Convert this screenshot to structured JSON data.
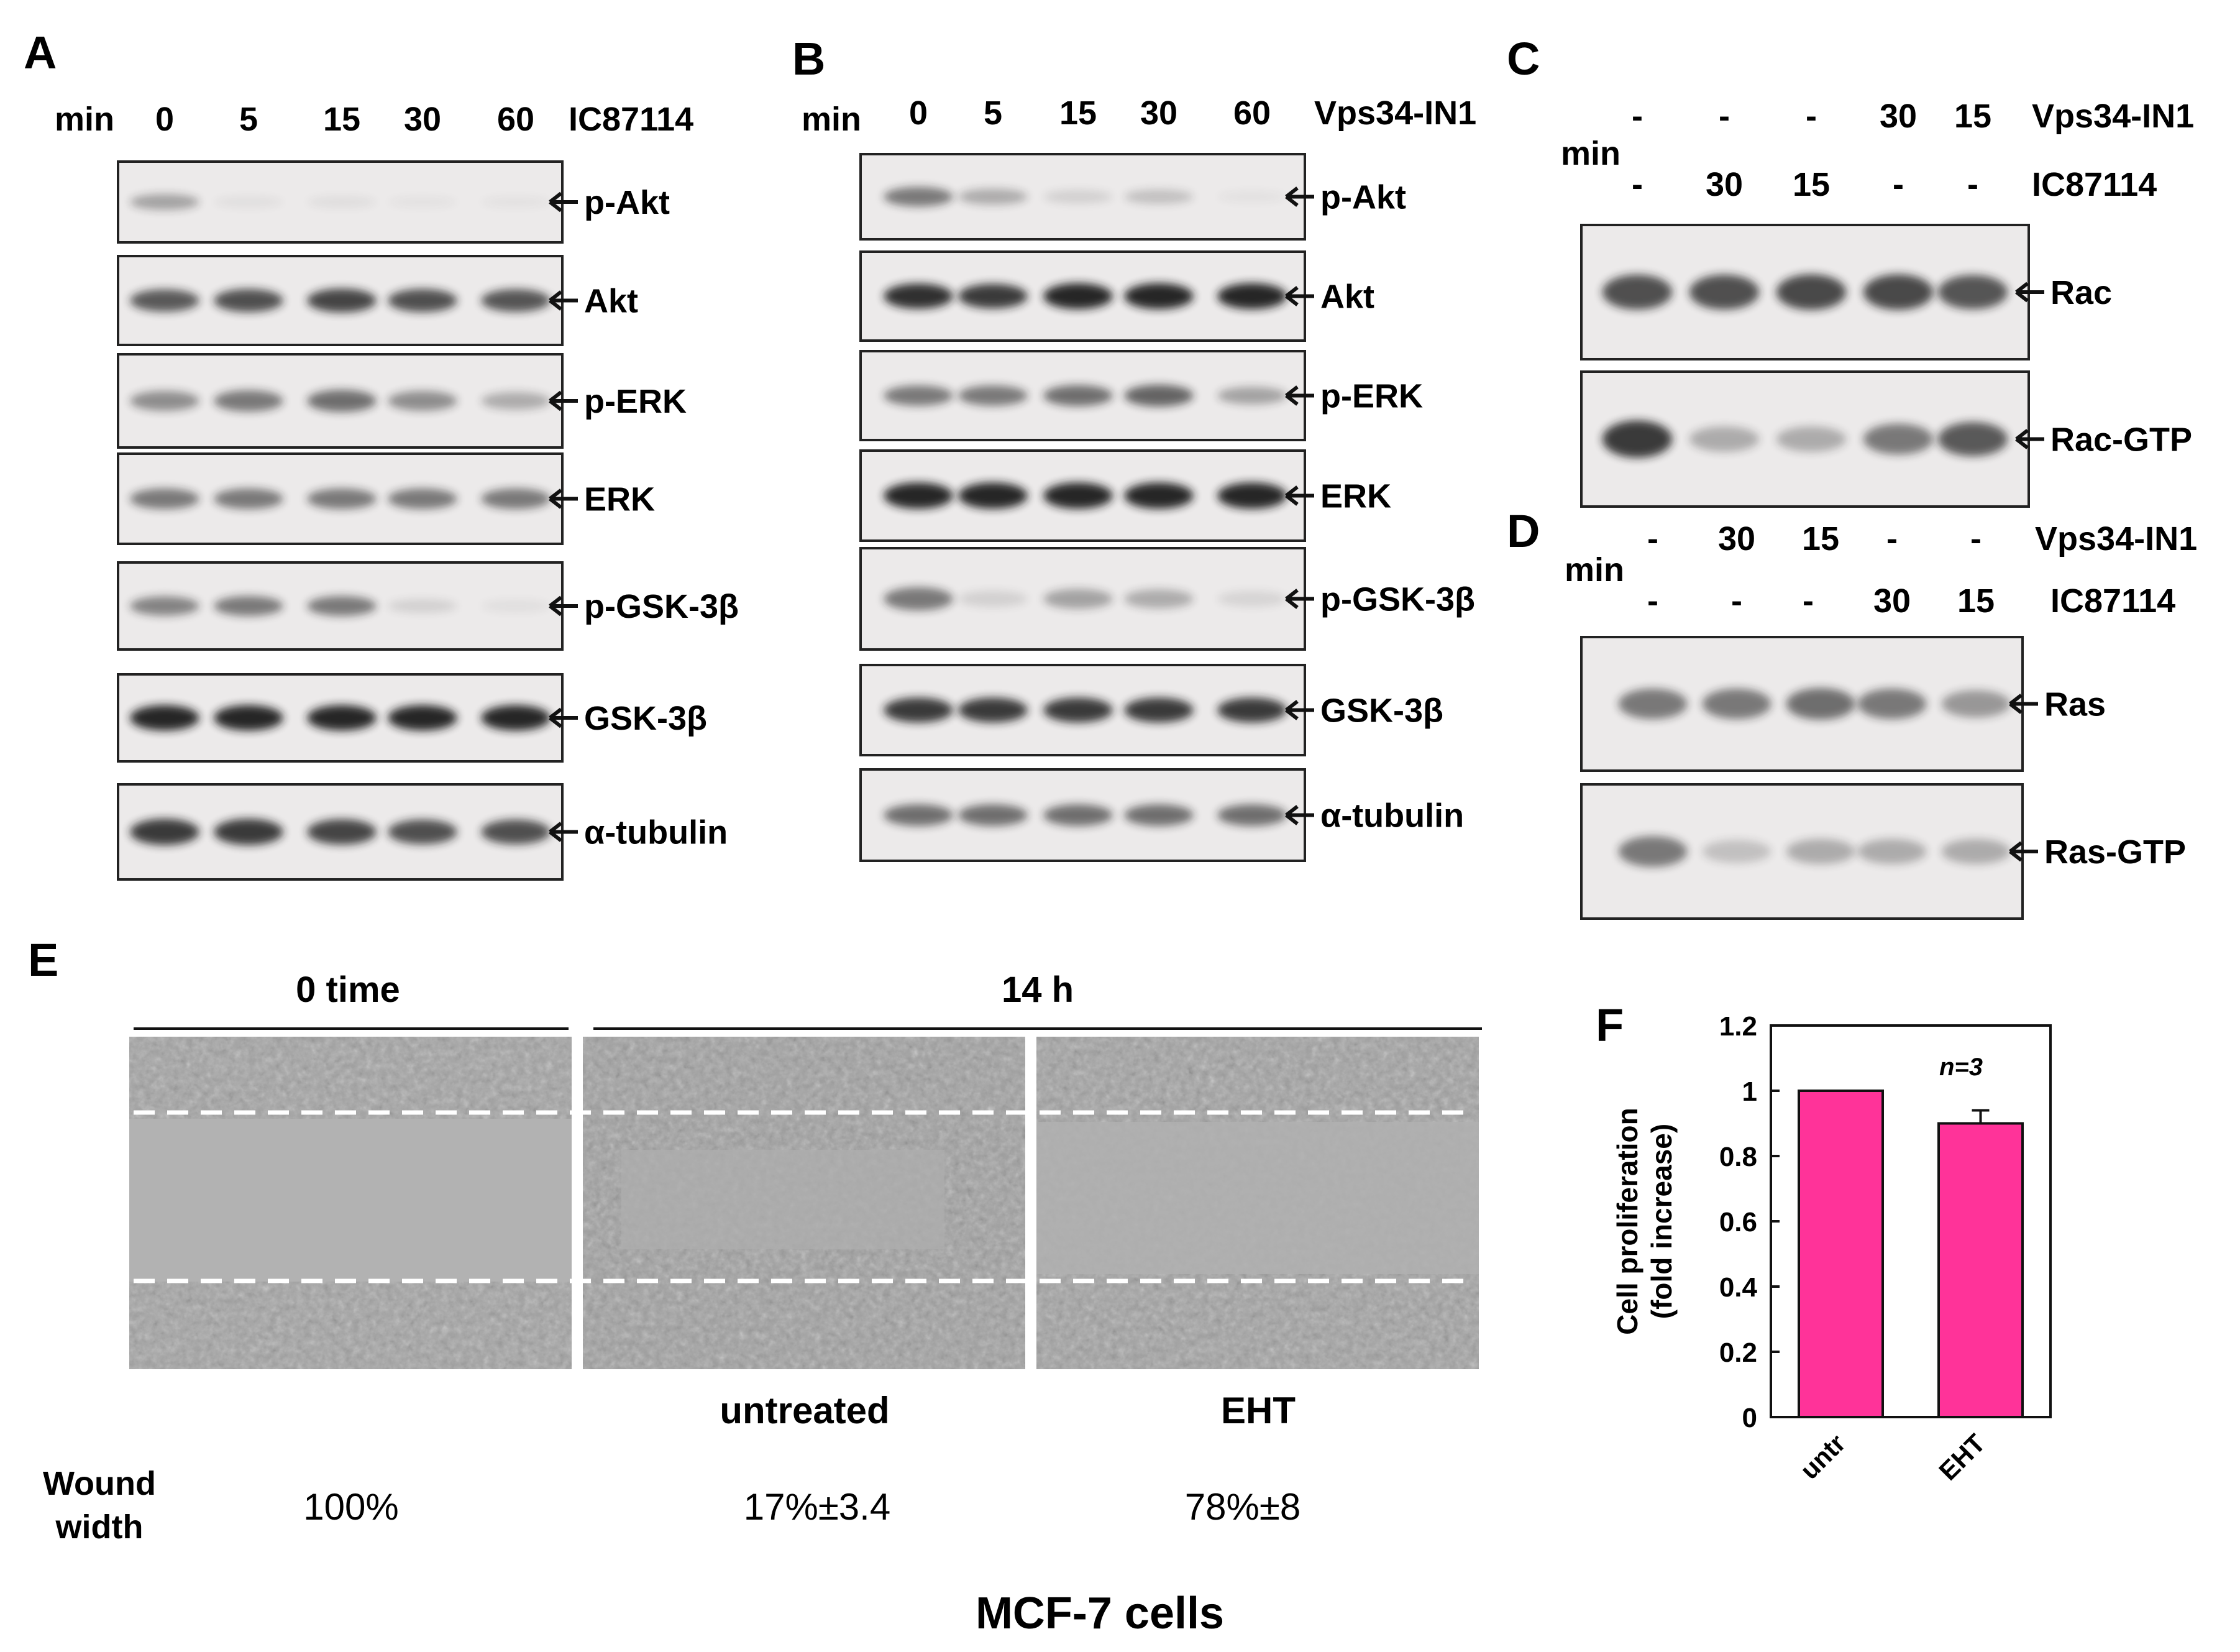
{
  "panel_letters": {
    "A": "A",
    "B": "B",
    "C": "C",
    "D": "D",
    "E": "E",
    "F": "F"
  },
  "panel_A": {
    "min_label": "min",
    "times": [
      "0",
      "5",
      "15",
      "30",
      "60"
    ],
    "treatment": "IC87114",
    "bands": [
      {
        "label": "p-Akt",
        "levels": [
          0.35,
          0.05,
          0.06,
          0.02,
          0.04
        ]
      },
      {
        "label": "Akt",
        "levels": [
          0.7,
          0.75,
          0.8,
          0.75,
          0.72
        ]
      },
      {
        "label": "p-ERK",
        "levels": [
          0.45,
          0.55,
          0.6,
          0.45,
          0.3
        ]
      },
      {
        "label": "ERK",
        "levels": [
          0.55,
          0.55,
          0.55,
          0.55,
          0.55
        ]
      },
      {
        "label": "p-GSK-3β",
        "levels": [
          0.5,
          0.55,
          0.55,
          0.12,
          0.05
        ]
      },
      {
        "label": "GSK-3β",
        "levels": [
          0.95,
          0.95,
          0.95,
          0.95,
          0.95
        ]
      },
      {
        "label": "α-tubulin",
        "levels": [
          0.85,
          0.85,
          0.8,
          0.75,
          0.75
        ]
      }
    ]
  },
  "panel_B": {
    "min_label": "min",
    "times": [
      "0",
      "5",
      "15",
      "30",
      "60"
    ],
    "treatment": "Vps34-IN1",
    "bands": [
      {
        "label": "p-Akt",
        "levels": [
          0.55,
          0.3,
          0.12,
          0.2,
          0.04
        ]
      },
      {
        "label": "Akt",
        "levels": [
          0.9,
          0.85,
          0.95,
          0.95,
          0.95
        ]
      },
      {
        "label": "p-ERK",
        "levels": [
          0.55,
          0.55,
          0.6,
          0.65,
          0.35
        ]
      },
      {
        "label": "ERK",
        "levels": [
          0.95,
          0.95,
          0.95,
          0.95,
          0.95
        ]
      },
      {
        "label": "p-GSK-3β",
        "levels": [
          0.55,
          0.12,
          0.35,
          0.3,
          0.1
        ]
      },
      {
        "label": "GSK-3β",
        "levels": [
          0.85,
          0.85,
          0.85,
          0.85,
          0.85
        ]
      },
      {
        "label": "α-tubulin",
        "levels": [
          0.6,
          0.6,
          0.6,
          0.6,
          0.6
        ]
      }
    ]
  },
  "panel_C": {
    "min_label": "min",
    "row1": {
      "values": [
        "-",
        "-",
        "-",
        "30",
        "15"
      ],
      "label": "Vps34-IN1"
    },
    "row2": {
      "values": [
        "-",
        "30",
        "15",
        "-",
        "-"
      ],
      "label": "IC87114"
    },
    "bands": [
      {
        "label": "Rac",
        "levels": [
          0.75,
          0.75,
          0.78,
          0.78,
          0.72
        ]
      },
      {
        "label": "Rac-GTP",
        "levels": [
          0.85,
          0.3,
          0.3,
          0.55,
          0.7
        ]
      }
    ]
  },
  "panel_D": {
    "min_label": "min",
    "row1": {
      "values": [
        "-",
        "30",
        "15",
        "-",
        "-"
      ],
      "label": "Vps34-IN1"
    },
    "row2": {
      "values": [
        "-",
        "-",
        "-",
        "30",
        "15"
      ],
      "label": "IC87114"
    },
    "bands": [
      {
        "label": "Ras",
        "levels": [
          0.55,
          0.55,
          0.6,
          0.55,
          0.4
        ]
      },
      {
        "label": "Ras-GTP",
        "levels": [
          0.55,
          0.2,
          0.3,
          0.3,
          0.3
        ]
      }
    ]
  },
  "panel_E": {
    "header_0": "0 time",
    "header_14": "14 h",
    "labels": [
      "untreated",
      "EHT"
    ],
    "wound_label_line1": "Wound",
    "wound_label_line2": "width",
    "wound_values": [
      "100%",
      "17%±3.4",
      "78%±8"
    ],
    "cell_line": "MCF-7 cells"
  },
  "chart_data": {
    "type": "bar",
    "categories": [
      "untr",
      "EHT"
    ],
    "values": [
      1.0,
      0.9
    ],
    "errors": [
      0,
      0.04
    ],
    "ylabel_line1": "Cell proliferation",
    "ylabel_line2": "(fold increase)",
    "yticks": [
      "0",
      "0.2",
      "0.4",
      "0.6",
      "0.8",
      "1",
      "1.2"
    ],
    "ylim": [
      0,
      1.2
    ],
    "annotation": "n=3",
    "bar_color": "#ff3399"
  },
  "colors": {
    "text": "#111111",
    "blot_bg": "#eceaea",
    "band": "#1a1a1a",
    "micrograph": "#9e9e9e",
    "dash": "#ffffff"
  }
}
